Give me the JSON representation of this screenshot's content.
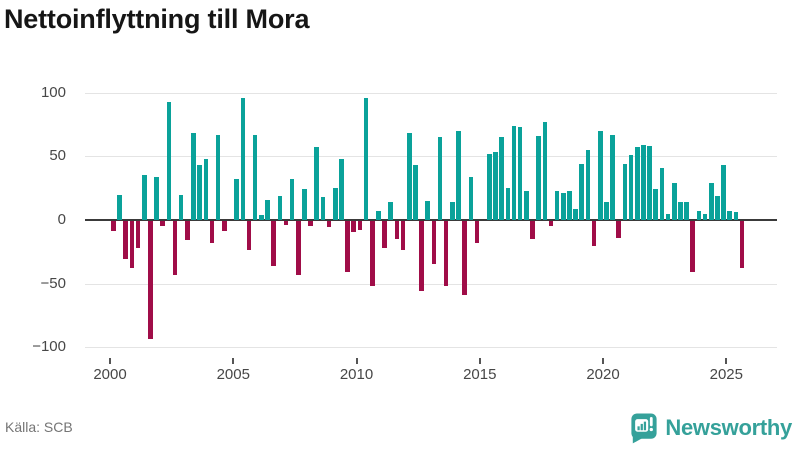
{
  "header": {
    "title": "Nettoinflyttning till Mora"
  },
  "footer": {
    "source": "Källa: SCB",
    "brand": "Newsworthy"
  },
  "colors": {
    "positive": "#0aa29a",
    "negative": "#a00d48",
    "grid": "#e4e4e4",
    "zero_axis": "#3a3a3a",
    "tick_label": "#474747",
    "brand_teal": "#35a19a"
  },
  "chart_data": {
    "type": "bar",
    "title": "Nettoinflyttning till Mora",
    "xlabel": "",
    "ylabel": "",
    "ylim": [
      -110,
      110
    ],
    "grid": true,
    "ytick_values": [
      100,
      50,
      0,
      -50,
      -100
    ],
    "ytick_labels": [
      "100",
      "50",
      "0",
      "−50",
      "−100"
    ],
    "xtick_labels": [
      "2000",
      "2005",
      "2010",
      "2015",
      "2020",
      "2025"
    ],
    "legend": "none",
    "series_name": "Nettoinflyttning",
    "quarters": [
      "2000Q1",
      "2000Q2",
      "2000Q3",
      "2000Q4",
      "2001Q1",
      "2001Q2",
      "2001Q3",
      "2001Q4",
      "2002Q1",
      "2002Q2",
      "2002Q3",
      "2002Q4",
      "2003Q1",
      "2003Q2",
      "2003Q3",
      "2003Q4",
      "2004Q1",
      "2004Q2",
      "2004Q3",
      "2004Q4",
      "2005Q1",
      "2005Q2",
      "2005Q3",
      "2005Q4",
      "2006Q1",
      "2006Q2",
      "2006Q3",
      "2006Q4",
      "2007Q1",
      "2007Q2",
      "2007Q3",
      "2007Q4",
      "2008Q1",
      "2008Q2",
      "2008Q3",
      "2008Q4",
      "2009Q1",
      "2009Q2",
      "2009Q3",
      "2009Q4",
      "2010Q1",
      "2010Q2",
      "2010Q3",
      "2010Q4",
      "2011Q1",
      "2011Q2",
      "2011Q3",
      "2011Q4",
      "2012Q1",
      "2012Q2",
      "2012Q3",
      "2012Q4",
      "2013Q1",
      "2013Q2",
      "2013Q3",
      "2013Q4",
      "2014Q1",
      "2014Q2",
      "2014Q3",
      "2014Q4",
      "2015Q1",
      "2015Q2",
      "2015Q3",
      "2015Q4",
      "2016Q1",
      "2016Q2",
      "2016Q3",
      "2016Q4",
      "2017Q1",
      "2017Q2",
      "2017Q3",
      "2017Q4",
      "2018Q1",
      "2018Q2",
      "2018Q3",
      "2018Q4",
      "2019Q1",
      "2019Q2",
      "2019Q3",
      "2019Q4",
      "2020Q1",
      "2020Q2",
      "2020Q3",
      "2020Q4",
      "2021Q1",
      "2021Q2",
      "2021Q3",
      "2021Q4",
      "2022Q1",
      "2022Q2",
      "2022Q3",
      "2022Q4",
      "2023Q1",
      "2023Q2",
      "2023Q3",
      "2023Q4",
      "2024Q1",
      "2024Q2",
      "2024Q3",
      "2024Q4",
      "2025Q1",
      "2025Q2",
      "2025Q3"
    ],
    "values": [
      -8,
      20,
      -30,
      -37,
      -21,
      35,
      -93,
      34,
      -4,
      93,
      -42,
      20,
      -15,
      68,
      43,
      48,
      -17,
      67,
      -8,
      0,
      32,
      96,
      -23,
      67,
      4,
      16,
      -35,
      19,
      -3,
      32,
      -42,
      24,
      -4,
      57,
      18,
      -5,
      25,
      48,
      -40,
      -9,
      -7,
      96,
      -51,
      7,
      -21,
      14,
      -14,
      -23,
      68,
      43,
      -55,
      15,
      -34,
      65,
      -51,
      14,
      70,
      -58,
      34,
      -17,
      0,
      52,
      53,
      65,
      25,
      74,
      73,
      23,
      -14,
      66,
      77,
      -4,
      23,
      21,
      23,
      9,
      44,
      55,
      -20,
      70,
      14,
      67,
      -13,
      44,
      51,
      57,
      59,
      58,
      24,
      41,
      5,
      29,
      14,
      14,
      -40,
      7,
      5,
      29,
      19,
      43,
      7,
      6,
      -37
    ]
  }
}
